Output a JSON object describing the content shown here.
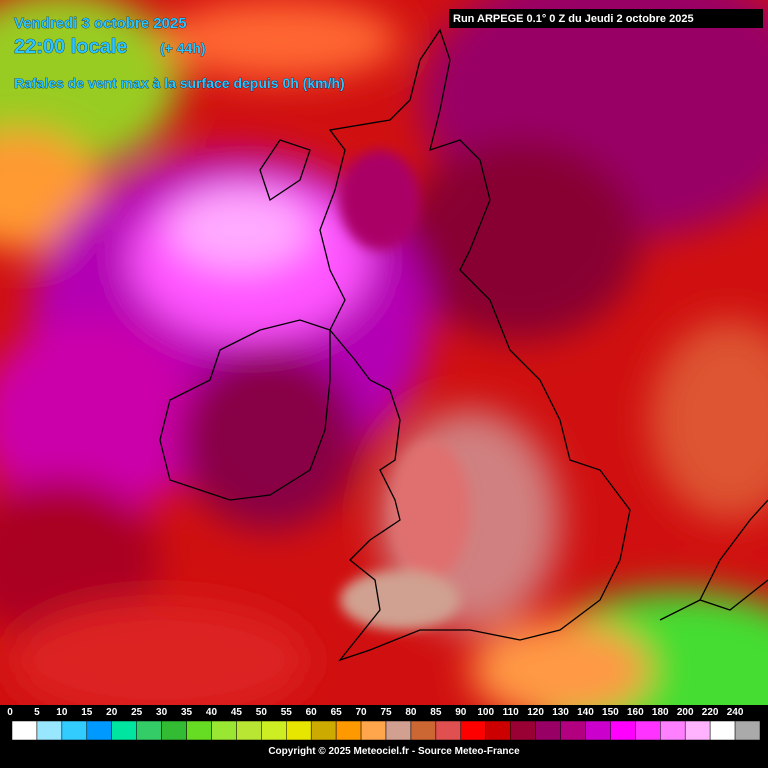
{
  "header": {
    "date": "Vendredi 3 octobre 2025",
    "time": "22:00 locale",
    "lead": "(+ 44h)",
    "parameter": "Rafales de vent max à la surface depuis 0h (km/h)",
    "run": "Run ARPEGE 0.1° 0 Z du Jeudi 2 octobre 2025"
  },
  "legend": {
    "items": [
      {
        "value": 0,
        "color": "#ffffff"
      },
      {
        "value": 5,
        "color": "#99e6ff"
      },
      {
        "value": 10,
        "color": "#33ccff"
      },
      {
        "value": 15,
        "color": "#0099ff"
      },
      {
        "value": 20,
        "color": "#00e6a0"
      },
      {
        "value": 25,
        "color": "#33cc66"
      },
      {
        "value": 30,
        "color": "#33bb33"
      },
      {
        "value": 35,
        "color": "#66dd22"
      },
      {
        "value": 40,
        "color": "#99e633"
      },
      {
        "value": 45,
        "color": "#b8e633"
      },
      {
        "value": 50,
        "color": "#ccee22"
      },
      {
        "value": 55,
        "color": "#e6e600"
      },
      {
        "value": 60,
        "color": "#ccaa00"
      },
      {
        "value": 65,
        "color": "#ff9900"
      },
      {
        "value": 70,
        "color": "#ffa64d"
      },
      {
        "value": 75,
        "color": "#d2a090"
      },
      {
        "value": 80,
        "color": "#cc6633"
      },
      {
        "value": 85,
        "color": "#e05050"
      },
      {
        "value": 90,
        "color": "#ff0000"
      },
      {
        "value": 100,
        "color": "#cc0000"
      },
      {
        "value": 110,
        "color": "#990033"
      },
      {
        "value": 120,
        "color": "#990066"
      },
      {
        "value": 130,
        "color": "#b30080"
      },
      {
        "value": 140,
        "color": "#cc00cc"
      },
      {
        "value": 150,
        "color": "#ff00ff"
      },
      {
        "value": 160,
        "color": "#ff33ff"
      },
      {
        "value": 180,
        "color": "#ff80ff"
      },
      {
        "value": 200,
        "color": "#ffb3ff"
      },
      {
        "value": 220,
        "color": "#ffffff"
      },
      {
        "value": 240,
        "color": "#aaaaaa"
      }
    ]
  },
  "footer": {
    "copyright": "Copyright © 2025 Meteociel.fr - Source Meteo-France"
  }
}
